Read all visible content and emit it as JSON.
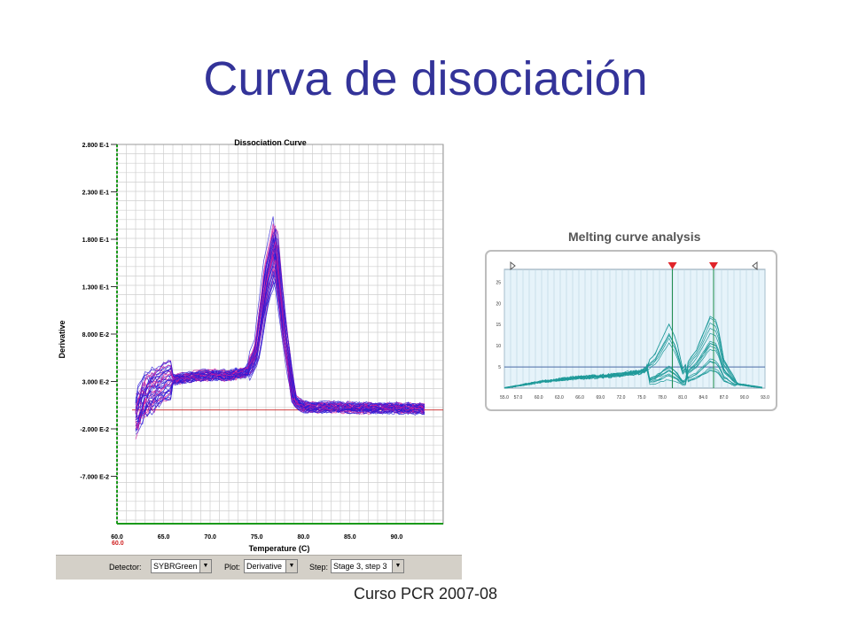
{
  "slide": {
    "title": "Curva de disociación",
    "footer": "Curso PCR 2007-08"
  },
  "dissociation": {
    "title": "Dissociation Curve",
    "xlabel": "Temperature (C)",
    "ylabel": "Derivative",
    "y_ticks": [
      "2.800 E-1",
      "2.300 E-1",
      "1.800 E-1",
      "1.300 E-1",
      "8.000 E-2",
      "3.000 E-2",
      "-2.000 E-2",
      "-7.000 E-2"
    ],
    "x_ticks": [
      "60.0",
      "65.0",
      "70.0",
      "75.0",
      "80.0",
      "85.0",
      "90.0"
    ],
    "x_marker": "60.0",
    "toolbar": {
      "detector_label": "Detector:",
      "detector_value": "SYBRGreen",
      "plot_label": "Plot:",
      "plot_value": "Derivative",
      "step_label": "Step:",
      "step_value": "Stage 3, step 3"
    },
    "colors": {
      "series_blue": "#2a1ad6",
      "series_magenta": "#d21a9a",
      "threshold": "#d04040",
      "axis_green": "#1a9a1a"
    }
  },
  "melting": {
    "title": "Melting curve analysis",
    "y_ticks": [
      "25",
      "20",
      "15",
      "10",
      "5"
    ],
    "x_ticks": [
      "55.0",
      "57.0",
      "60.0",
      "63.0",
      "66.0",
      "69.0",
      "72.0",
      "75.0",
      "78.0",
      "81.0",
      "84.0",
      "87.0",
      "90.0",
      "93.0"
    ],
    "threshold": 5,
    "colors": {
      "series": "#1f9a9a",
      "background": "#e6f3fa",
      "threshold": "#4a6aa6",
      "marker": "#e0242a"
    }
  },
  "chart_data": [
    {
      "type": "line",
      "title": "Dissociation Curve",
      "xlabel": "Temperature (C)",
      "ylabel": "Derivative",
      "xlim": [
        60,
        95
      ],
      "ylim": [
        -0.12,
        0.28
      ],
      "grid": true,
      "series": [
        {
          "x": [
            62,
            63,
            65,
            68,
            70,
            72,
            74,
            75,
            76,
            77,
            78,
            79,
            80,
            83,
            86,
            90,
            93
          ],
          "values": [
            0.0,
            0.02,
            0.03,
            0.035,
            0.037,
            0.036,
            0.04,
            0.06,
            0.13,
            0.17,
            0.08,
            0.01,
            0.003,
            0.003,
            0.002,
            0.002,
            0.001
          ]
        }
      ]
    },
    {
      "type": "line",
      "title": "Melting curve analysis",
      "xlim": [
        55,
        93
      ],
      "ylim": [
        0,
        28
      ],
      "grid": true,
      "series": [
        {
          "x": [
            55,
            60,
            65,
            70,
            75,
            77,
            79,
            80,
            81,
            83,
            85,
            86,
            87,
            89,
            93
          ],
          "values": [
            0,
            1.5,
            2.5,
            3,
            4,
            7,
            13,
            10,
            4,
            8,
            15,
            14,
            6,
            1,
            0
          ]
        }
      ]
    }
  ]
}
